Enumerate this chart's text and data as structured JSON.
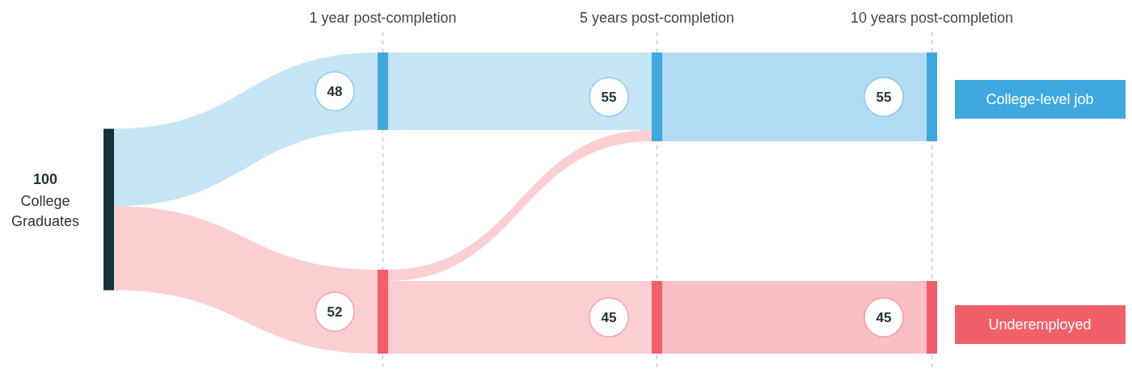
{
  "chart_data": {
    "type": "other",
    "categories": [
      "1 year post-completion",
      "5 years post-completion",
      "10 years post-completion"
    ],
    "series": [
      {
        "name": "College-level job",
        "color": "#3ea8df",
        "values": [
          48,
          55,
          55
        ]
      },
      {
        "name": "Underemployed",
        "color": "#f15f69",
        "values": [
          52,
          45,
          45
        ]
      }
    ],
    "annotations": [
      "100",
      "College Graduates"
    ],
    "legend": "right",
    "data_labels": true
  }
}
